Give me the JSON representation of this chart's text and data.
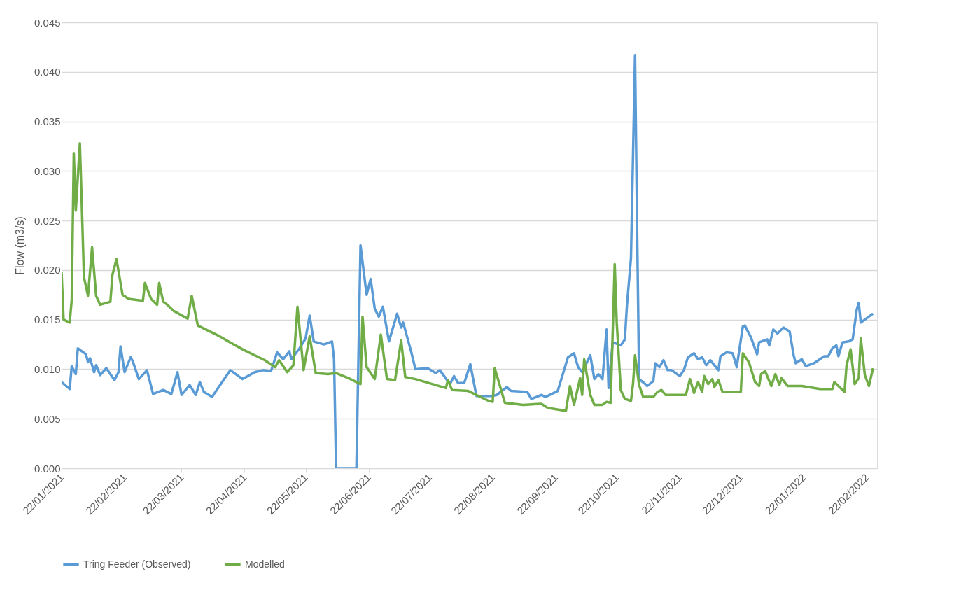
{
  "chart_data": {
    "type": "line",
    "ylabel": "Flow (m3/s)",
    "legend": "bottom",
    "grid": "y",
    "line_style": "solid",
    "marker": "none",
    "xlim": [
      "2021-01-22",
      "2022-02-27"
    ],
    "xticks": [
      {
        "value": "2021-01-22",
        "label": "22/01/2021"
      },
      {
        "value": "2021-02-22",
        "label": "22/02/2021"
      },
      {
        "value": "2021-03-22",
        "label": "22/03/2021"
      },
      {
        "value": "2021-04-22",
        "label": "22/04/2021"
      },
      {
        "value": "2021-05-22",
        "label": "22/05/2021"
      },
      {
        "value": "2021-06-22",
        "label": "22/06/2021"
      },
      {
        "value": "2021-07-22",
        "label": "22/07/2021"
      },
      {
        "value": "2021-08-22",
        "label": "22/08/2021"
      },
      {
        "value": "2021-09-22",
        "label": "22/09/2021"
      },
      {
        "value": "2021-10-22",
        "label": "22/10/2021"
      },
      {
        "value": "2021-11-22",
        "label": "22/11/2021"
      },
      {
        "value": "2021-12-22",
        "label": "22/12/2021"
      },
      {
        "value": "2022-01-22",
        "label": "22/01/2022"
      },
      {
        "value": "2022-02-22",
        "label": "22/02/2022"
      }
    ],
    "ylim": [
      0,
      0.045
    ],
    "yticks": [
      {
        "value": 0,
        "label": "0.000"
      },
      {
        "value": 0.005,
        "label": "0.005"
      },
      {
        "value": 0.01,
        "label": "0.010"
      },
      {
        "value": 0.015,
        "label": "0.015"
      },
      {
        "value": 0.02,
        "label": "0.020"
      },
      {
        "value": 0.025,
        "label": "0.025"
      },
      {
        "value": 0.03,
        "label": "0.030"
      },
      {
        "value": 0.035,
        "label": "0.035"
      },
      {
        "value": 0.04,
        "label": "0.040"
      },
      {
        "value": 0.045,
        "label": "0.045"
      }
    ],
    "series": [
      {
        "name": "Tring Feeder (Observed)",
        "color": "#5b9bd5",
        "x": [
          "2021-01-22",
          "2021-01-26",
          "2021-01-27",
          "2021-01-29",
          "2021-01-30",
          "2021-02-03",
          "2021-02-04",
          "2021-02-05",
          "2021-02-07",
          "2021-02-08",
          "2021-02-10",
          "2021-02-13",
          "2021-02-17",
          "2021-02-19",
          "2021-02-20",
          "2021-02-22",
          "2021-02-25",
          "2021-02-26",
          "2021-03-01",
          "2021-03-05",
          "2021-03-08",
          "2021-03-13",
          "2021-03-17",
          "2021-03-20",
          "2021-03-22",
          "2021-03-26",
          "2021-03-29",
          "2021-03-31",
          "2021-04-02",
          "2021-04-06",
          "2021-04-10",
          "2021-04-15",
          "2021-04-21",
          "2021-04-27",
          "2021-05-01",
          "2021-05-05",
          "2021-05-08",
          "2021-05-11",
          "2021-05-14",
          "2021-05-15",
          "2021-05-19",
          "2021-05-22",
          "2021-05-24",
          "2021-05-26",
          "2021-05-31",
          "2021-06-04",
          "2021-06-05",
          "2021-06-06",
          "2021-06-16",
          "2021-06-18",
          "2021-06-21",
          "2021-06-23",
          "2021-06-25",
          "2021-06-27",
          "2021-06-29",
          "2021-07-02",
          "2021-07-06",
          "2021-07-08",
          "2021-07-09",
          "2021-07-13",
          "2021-07-15",
          "2021-07-21",
          "2021-07-25",
          "2021-07-27",
          "2021-08-01",
          "2021-08-03",
          "2021-08-05",
          "2021-08-08",
          "2021-08-11",
          "2021-08-14",
          "2021-08-22",
          "2021-08-24",
          "2021-08-29",
          "2021-08-31",
          "2021-09-08",
          "2021-09-10",
          "2021-09-15",
          "2021-09-17",
          "2021-09-23",
          "2021-09-28",
          "2021-10-01",
          "2021-10-03",
          "2021-10-05",
          "2021-10-09",
          "2021-10-11",
          "2021-10-13",
          "2021-10-15",
          "2021-10-17",
          "2021-10-18",
          "2021-10-20",
          "2021-10-24",
          "2021-10-26",
          "2021-10-27",
          "2021-10-29",
          "2021-10-31",
          "2021-11-01",
          "2021-11-02",
          "2021-11-05",
          "2021-11-06",
          "2021-11-09",
          "2021-11-10",
          "2021-11-12",
          "2021-11-14",
          "2021-11-16",
          "2021-11-18",
          "2021-11-22",
          "2021-11-24",
          "2021-11-26",
          "2021-11-29",
          "2021-12-01",
          "2021-12-03",
          "2021-12-05",
          "2021-12-07",
          "2021-12-11",
          "2021-12-12",
          "2021-12-15",
          "2021-12-18",
          "2021-12-20",
          "2021-12-23",
          "2021-12-24",
          "2021-12-27",
          "2021-12-30",
          "2021-12-31",
          "2022-01-04",
          "2022-01-05",
          "2022-01-07",
          "2022-01-09",
          "2022-01-12",
          "2022-01-15",
          "2022-01-17",
          "2022-01-18",
          "2022-01-21",
          "2022-01-23",
          "2022-01-27",
          "2022-02-01",
          "2022-02-03",
          "2022-02-05",
          "2022-02-07",
          "2022-02-08",
          "2022-02-10",
          "2022-02-13",
          "2022-02-15",
          "2022-02-17",
          "2022-02-18",
          "2022-02-19",
          "2022-02-21",
          "2022-02-25"
        ],
        "values": [
          0.0087,
          0.008,
          0.0103,
          0.0095,
          0.0121,
          0.0115,
          0.0107,
          0.0111,
          0.0097,
          0.0104,
          0.0094,
          0.0101,
          0.0089,
          0.0097,
          0.0123,
          0.0097,
          0.0112,
          0.0108,
          0.009,
          0.0099,
          0.0075,
          0.0079,
          0.0075,
          0.0097,
          0.0074,
          0.0084,
          0.0074,
          0.0087,
          0.0077,
          0.0072,
          0.0084,
          0.0099,
          0.009,
          0.0097,
          0.0099,
          0.0098,
          0.0117,
          0.011,
          0.0118,
          0.011,
          0.0121,
          0.0131,
          0.0154,
          0.0128,
          0.0125,
          0.0128,
          0.011,
          0,
          0,
          0.0225,
          0.0175,
          0.0191,
          0.0161,
          0.0153,
          0.0163,
          0.0128,
          0.0156,
          0.0142,
          0.0147,
          0.0117,
          0.01,
          0.0101,
          0.0096,
          0.0099,
          0.0085,
          0.0093,
          0.0086,
          0.0086,
          0.0105,
          0.0073,
          0.0073,
          0.0074,
          0.0082,
          0.0078,
          0.0077,
          0.007,
          0.0074,
          0.0072,
          0.0078,
          0.0112,
          0.0116,
          0.0102,
          0.0097,
          0.0114,
          0.009,
          0.0095,
          0.009,
          0.014,
          0.0081,
          0.0127,
          0.0124,
          0.013,
          0.0164,
          0.0212,
          0.0417,
          0.0246,
          0.009,
          0.0085,
          0.0083,
          0.0088,
          0.0106,
          0.0102,
          0.0109,
          0.0099,
          0.0099,
          0.0093,
          0.0099,
          0.0112,
          0.0116,
          0.011,
          0.0112,
          0.0104,
          0.0109,
          0.0099,
          0.0113,
          0.0117,
          0.0116,
          0.0102,
          0.0143,
          0.0144,
          0.0132,
          0.0115,
          0.0127,
          0.013,
          0.0124,
          0.014,
          0.0136,
          0.0142,
          0.0138,
          0.0114,
          0.0106,
          0.011,
          0.0103,
          0.0106,
          0.0113,
          0.0113,
          0.0121,
          0.0124,
          0.0113,
          0.0127,
          0.0128,
          0.013,
          0.016,
          0.0167,
          0.0147,
          0.015,
          0.0156
        ]
      },
      {
        "name": "Modelled",
        "color": "#70ad47",
        "x": [
          "2021-01-22",
          "2021-01-23",
          "2021-01-26",
          "2021-01-27",
          "2021-01-28",
          "2021-01-29",
          "2021-01-31",
          "2021-02-01",
          "2021-02-02",
          "2021-02-04",
          "2021-02-06",
          "2021-02-08",
          "2021-02-10",
          "2021-02-15",
          "2021-02-16",
          "2021-02-18",
          "2021-02-21",
          "2021-02-24",
          "2021-03-03",
          "2021-03-04",
          "2021-03-07",
          "2021-03-10",
          "2021-03-11",
          "2021-03-13",
          "2021-03-15",
          "2021-03-18",
          "2021-03-25",
          "2021-03-27",
          "2021-03-30",
          "2021-04-09",
          "2021-04-14",
          "2021-04-21",
          "2021-04-26",
          "2021-05-02",
          "2021-05-07",
          "2021-05-09",
          "2021-05-13",
          "2021-05-16",
          "2021-05-18",
          "2021-05-21",
          "2021-05-24",
          "2021-05-27",
          "2021-06-02",
          "2021-06-06",
          "2021-06-12",
          "2021-06-18",
          "2021-06-19",
          "2021-06-21",
          "2021-06-25",
          "2021-06-28",
          "2021-07-01",
          "2021-07-05",
          "2021-07-08",
          "2021-07-10",
          "2021-07-15",
          "2021-07-30",
          "2021-07-31",
          "2021-08-02",
          "2021-08-10",
          "2021-08-20",
          "2021-08-22",
          "2021-08-23",
          "2021-08-28",
          "2021-09-06",
          "2021-09-15",
          "2021-09-18",
          "2021-09-27",
          "2021-09-29",
          "2021-10-01",
          "2021-10-04",
          "2021-10-05",
          "2021-10-06",
          "2021-10-09",
          "2021-10-11",
          "2021-10-15",
          "2021-10-17",
          "2021-10-19",
          "2021-10-21",
          "2021-10-22",
          "2021-10-24",
          "2021-10-26",
          "2021-10-29",
          "2021-10-30",
          "2021-10-31",
          "2021-11-02",
          "2021-11-04",
          "2021-11-09",
          "2021-11-11",
          "2021-11-13",
          "2021-11-15",
          "2021-11-25",
          "2021-11-27",
          "2021-11-29",
          "2021-12-01",
          "2021-12-03",
          "2021-12-04",
          "2021-12-06",
          "2021-12-08",
          "2021-12-09",
          "2021-12-11",
          "2021-12-13",
          "2021-12-22",
          "2021-12-23",
          "2021-12-26",
          "2021-12-29",
          "2021-12-31",
          "2022-01-01",
          "2022-01-03",
          "2022-01-06",
          "2022-01-08",
          "2022-01-10",
          "2022-01-11",
          "2022-01-14",
          "2022-01-21",
          "2022-01-30",
          "2022-02-05",
          "2022-02-06",
          "2022-02-08",
          "2022-02-11",
          "2022-02-12",
          "2022-02-14",
          "2022-02-16",
          "2022-02-18",
          "2022-02-19",
          "2022-02-21",
          "2022-02-23",
          "2022-02-25"
        ],
        "values": [
          0.0198,
          0.015,
          0.0147,
          0.017,
          0.0318,
          0.026,
          0.0328,
          0.0262,
          0.0193,
          0.0174,
          0.0223,
          0.0174,
          0.0165,
          0.0168,
          0.0195,
          0.0211,
          0.0175,
          0.0171,
          0.0169,
          0.0187,
          0.0171,
          0.0165,
          0.0187,
          0.0168,
          0.0165,
          0.0159,
          0.0151,
          0.0174,
          0.0144,
          0.0134,
          0.0128,
          0.012,
          0.0115,
          0.0109,
          0.0102,
          0.0109,
          0.0097,
          0.0104,
          0.0163,
          0.0099,
          0.0133,
          0.0096,
          0.0095,
          0.0096,
          0.0091,
          0.0085,
          0.0153,
          0.0102,
          0.009,
          0.0135,
          0.009,
          0.0089,
          0.0129,
          0.0092,
          0.009,
          0.0081,
          0.0089,
          0.0079,
          0.0078,
          0.0068,
          0.0067,
          0.0101,
          0.0066,
          0.0064,
          0.0065,
          0.0061,
          0.0058,
          0.0083,
          0.0064,
          0.0091,
          0.0074,
          0.011,
          0.0074,
          0.0064,
          0.0064,
          0.0067,
          0.0066,
          0.0206,
          0.0147,
          0.0079,
          0.007,
          0.0068,
          0.0085,
          0.0114,
          0.0084,
          0.0072,
          0.0072,
          0.0077,
          0.0079,
          0.0074,
          0.0074,
          0.009,
          0.0076,
          0.0087,
          0.0077,
          0.0093,
          0.0085,
          0.009,
          0.0082,
          0.0089,
          0.0077,
          0.0077,
          0.0116,
          0.0107,
          0.0087,
          0.0083,
          0.0095,
          0.0098,
          0.0083,
          0.0095,
          0.0084,
          0.0091,
          0.0083,
          0.0083,
          0.008,
          0.008,
          0.0087,
          0.0083,
          0.0077,
          0.0104,
          0.012,
          0.0085,
          0.0091,
          0.0131,
          0.0094,
          0.0083,
          0.0101
        ]
      }
    ]
  }
}
